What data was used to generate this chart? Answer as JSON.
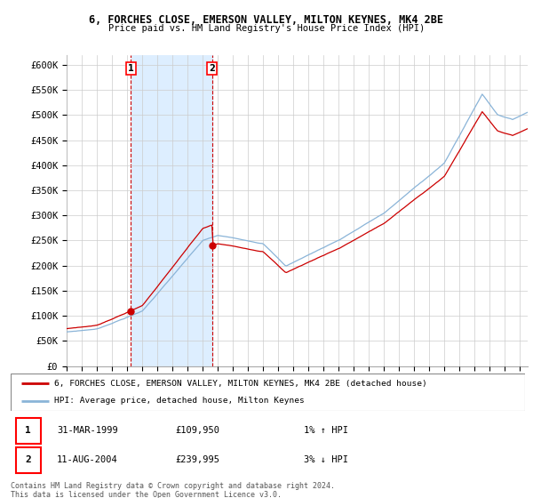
{
  "title1": "6, FORCHES CLOSE, EMERSON VALLEY, MILTON KEYNES, MK4 2BE",
  "title2": "Price paid vs. HM Land Registry's House Price Index (HPI)",
  "ylabel_ticks": [
    "£0",
    "£50K",
    "£100K",
    "£150K",
    "£200K",
    "£250K",
    "£300K",
    "£350K",
    "£400K",
    "£450K",
    "£500K",
    "£550K",
    "£600K"
  ],
  "ytick_vals": [
    0,
    50000,
    100000,
    150000,
    200000,
    250000,
    300000,
    350000,
    400000,
    450000,
    500000,
    550000,
    600000
  ],
  "ylim": [
    0,
    620000
  ],
  "xlim_start": 1995.0,
  "xlim_end": 2025.5,
  "purchase1_x": 1999.25,
  "purchase1_y": 109950,
  "purchase2_x": 2004.62,
  "purchase2_y": 239995,
  "purchase1_date": "31-MAR-1999",
  "purchase1_price": "£109,950",
  "purchase1_hpi": "1% ↑ HPI",
  "purchase2_date": "11-AUG-2004",
  "purchase2_price": "£239,995",
  "purchase2_hpi": "3% ↓ HPI",
  "legend_line1": "6, FORCHES CLOSE, EMERSON VALLEY, MILTON KEYNES, MK4 2BE (detached house)",
  "legend_line2": "HPI: Average price, detached house, Milton Keynes",
  "footer": "Contains HM Land Registry data © Crown copyright and database right 2024.\nThis data is licensed under the Open Government Licence v3.0.",
  "hpi_color": "#8ab4d8",
  "price_color": "#cc0000",
  "shade_color": "#ddeeff",
  "background_color": "#ffffff",
  "grid_color": "#cccccc"
}
